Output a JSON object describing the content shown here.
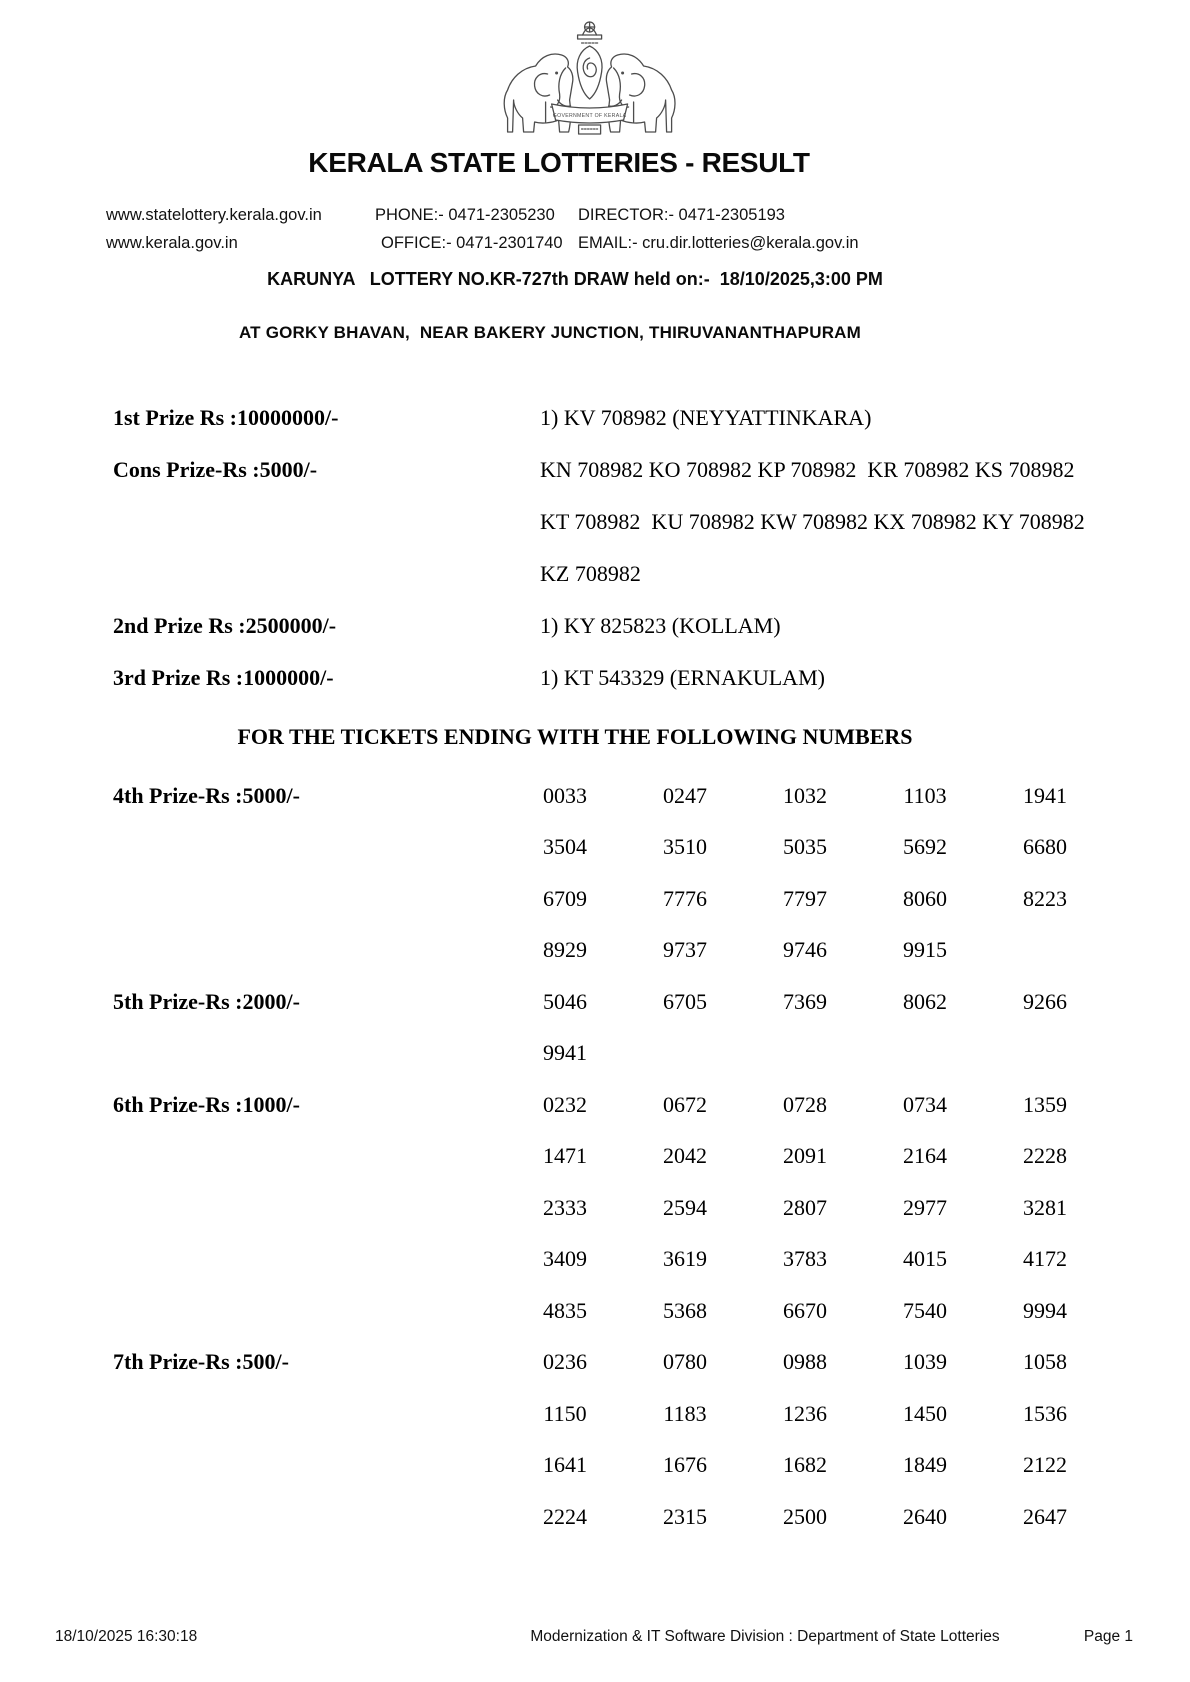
{
  "header": {
    "title": "KERALA STATE LOTTERIES - RESULT",
    "emblem_caption": "GOVERNMENT OF KERALA"
  },
  "contact": {
    "website1": "www.statelottery.kerala.gov.in",
    "website2": "www.kerala.gov.in",
    "phone": "PHONE:- 0471-2305230",
    "office": "OFFICE:- 0471-2301740",
    "director": "DIRECTOR:- 0471-2305193",
    "email": "EMAIL:- cru.dir.lotteries@kerala.gov.in"
  },
  "draw": {
    "line": "KARUNYA   LOTTERY NO.KR-727th DRAW held on:-  18/10/2025,3:00 PM",
    "venue": "AT GORKY BHAVAN,  NEAR BAKERY JUNCTION, THIRUVANANTHAPURAM"
  },
  "top_prizes": [
    {
      "label": "1st Prize Rs :10000000/-",
      "winner_lines": [
        "1) KV 708982 (NEYYATTINKARA)"
      ]
    },
    {
      "label": "Cons Prize-Rs :5000/-",
      "winner_lines": [
        "KN 708982 KO 708982 KP 708982  KR 708982 KS 708982",
        "KT 708982  KU 708982 KW 708982 KX 708982 KY 708982",
        "KZ 708982"
      ]
    },
    {
      "label": "2nd Prize Rs :2500000/-",
      "winner_lines": [
        "1) KY 825823 (KOLLAM)"
      ]
    },
    {
      "label": "3rd Prize Rs :1000000/-",
      "winner_lines": [
        "1) KT 543329 (ERNAKULAM)"
      ]
    }
  ],
  "section_heading": "FOR THE TICKETS ENDING WITH THE FOLLOWING NUMBERS",
  "ending_prizes": [
    {
      "label": "4th Prize-Rs :5000/-",
      "rows": [
        [
          "0033",
          "0247",
          "1032",
          "1103",
          "1941"
        ],
        [
          "3504",
          "3510",
          "5035",
          "5692",
          "6680"
        ],
        [
          "6709",
          "7776",
          "7797",
          "8060",
          "8223"
        ],
        [
          "8929",
          "9737",
          "9746",
          "9915"
        ]
      ]
    },
    {
      "label": "5th Prize-Rs :2000/-",
      "rows": [
        [
          "5046",
          "6705",
          "7369",
          "8062",
          "9266"
        ],
        [
          "9941"
        ]
      ]
    },
    {
      "label": "6th Prize-Rs :1000/-",
      "rows": [
        [
          "0232",
          "0672",
          "0728",
          "0734",
          "1359"
        ],
        [
          "1471",
          "2042",
          "2091",
          "2164",
          "2228"
        ],
        [
          "2333",
          "2594",
          "2807",
          "2977",
          "3281"
        ],
        [
          "3409",
          "3619",
          "3783",
          "4015",
          "4172"
        ],
        [
          "4835",
          "5368",
          "6670",
          "7540",
          "9994"
        ]
      ]
    },
    {
      "label": "7th Prize-Rs :500/-",
      "rows": [
        [
          "0236",
          "0780",
          "0988",
          "1039",
          "1058"
        ],
        [
          "1150",
          "1183",
          "1236",
          "1450",
          "1536"
        ],
        [
          "1641",
          "1676",
          "1682",
          "1849",
          "2122"
        ],
        [
          "2224",
          "2315",
          "2500",
          "2640",
          "2647"
        ]
      ]
    }
  ],
  "footer": {
    "timestamp": "18/10/2025 16:30:18",
    "division": "Modernization & IT Software Division : Department of State Lotteries",
    "page": "Page 1"
  }
}
